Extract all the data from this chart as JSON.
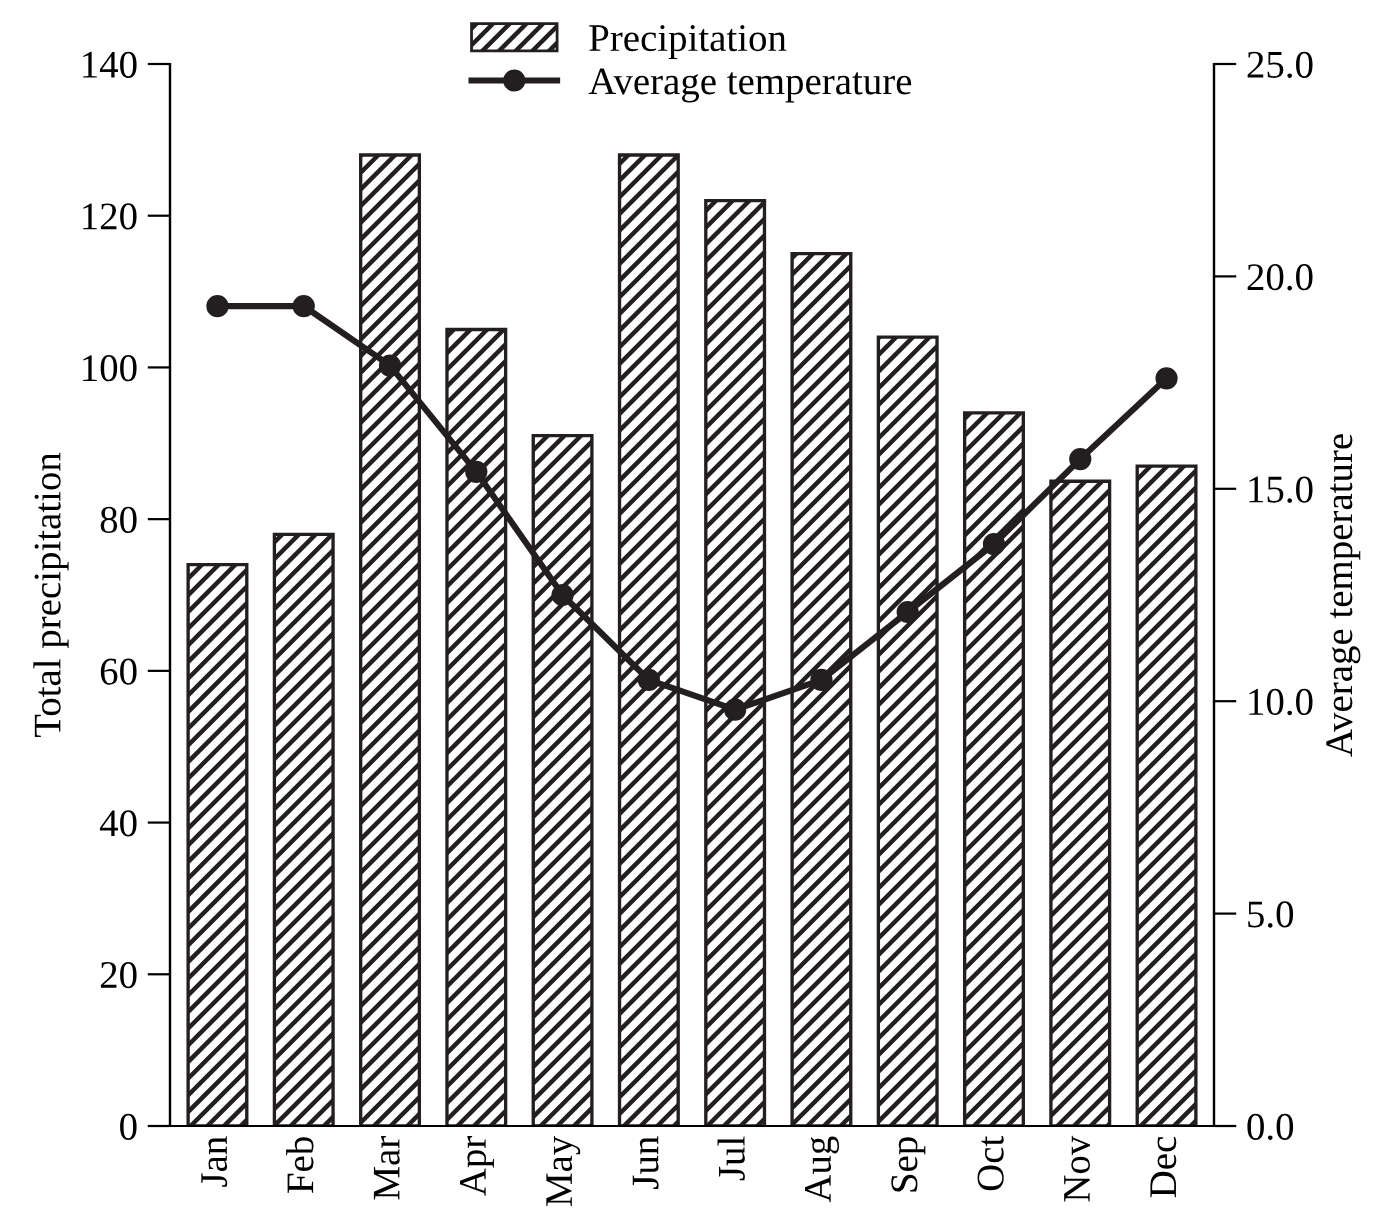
{
  "chart_data": {
    "type": "bar",
    "xlabel": null,
    "ylabel": "Total precipitation",
    "y2label": "Average temperature",
    "categories": [
      "Jan",
      "Feb",
      "Mar",
      "Apr",
      "May",
      "Jun",
      "Jul",
      "Aug",
      "Sep",
      "Oct",
      "Nov",
      "Dec"
    ],
    "series": [
      {
        "name": "Precipitation",
        "color": "#231f20",
        "values": [
          74,
          78,
          128,
          105,
          91,
          128,
          122,
          115,
          104,
          94,
          85,
          87
        ]
      },
      {
        "name": "Average temperature",
        "type": "line",
        "axis": "y2",
        "color": "#231f20",
        "marker": "circle",
        "values": [
          19.3,
          19.3,
          17.9,
          15.4,
          12.5,
          10.5,
          9.8,
          10.5,
          12.1,
          13.7,
          15.7,
          17.6
        ]
      }
    ],
    "ylim": [
      0,
      140
    ],
    "yticks": [
      0,
      20,
      40,
      60,
      80,
      100,
      120,
      140
    ],
    "y2lim": [
      0,
      25
    ],
    "y2ticks": [
      {
        "value": 0,
        "label": "0.0"
      },
      {
        "value": 5,
        "label": "5.0"
      },
      {
        "value": 10,
        "label": "10.0"
      },
      {
        "value": 15,
        "label": "15.0"
      },
      {
        "value": 20,
        "label": "20.0"
      },
      {
        "value": 25,
        "label": "25.0"
      }
    ],
    "grid": false,
    "legend": "top"
  }
}
